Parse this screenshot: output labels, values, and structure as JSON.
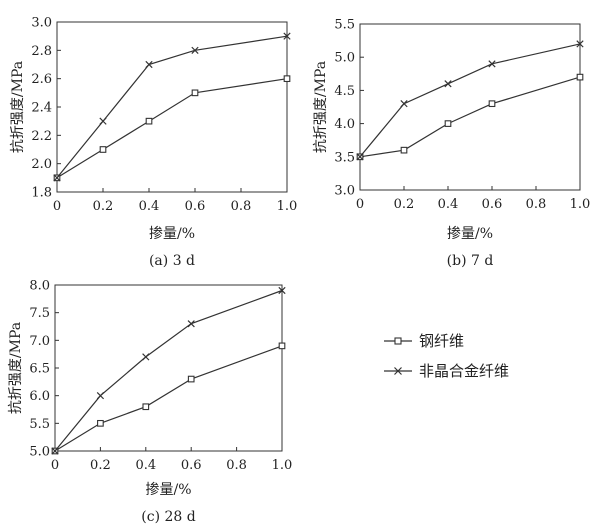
{
  "legend": [
    {
      "name": "钢纤维",
      "marker": "square-icon"
    },
    {
      "name": "非晶合金纤维",
      "marker": "cross-icon"
    }
  ],
  "chart_data": [
    {
      "type": "line",
      "caption": "(a) 3 d",
      "xlabel": "掺量/%",
      "ylabel": "抗折强度/MPa",
      "x": [
        0,
        0.2,
        0.4,
        0.6,
        1.0
      ],
      "xticks": [
        "0",
        "0.2",
        "0.4",
        "0.6",
        "0.8",
        "1.0"
      ],
      "xtick_values": [
        0,
        0.2,
        0.4,
        0.6,
        0.8,
        1.0
      ],
      "xlim": [
        0,
        1.0
      ],
      "ylim": [
        1.8,
        3.0
      ],
      "yticks": [
        "1.8",
        "2.0",
        "2.2",
        "2.4",
        "2.6",
        "2.8",
        "3.0"
      ],
      "ytick_values": [
        1.8,
        2.0,
        2.2,
        2.4,
        2.6,
        2.8,
        3.0
      ],
      "series": [
        {
          "name": "钢纤维",
          "values": [
            1.9,
            2.1,
            2.3,
            2.5,
            2.6
          ]
        },
        {
          "name": "非晶合金纤维",
          "values": [
            1.9,
            2.3,
            2.7,
            2.8,
            2.9
          ]
        }
      ]
    },
    {
      "type": "line",
      "caption": "(b) 7 d",
      "xlabel": "掺量/%",
      "ylabel": "抗折强度/MPa",
      "x": [
        0,
        0.2,
        0.4,
        0.6,
        1.0
      ],
      "xticks": [
        "0",
        "0.2",
        "0.4",
        "0.6",
        "0.8",
        "1.0"
      ],
      "xtick_values": [
        0,
        0.2,
        0.4,
        0.6,
        0.8,
        1.0
      ],
      "xlim": [
        0,
        1.0
      ],
      "ylim": [
        3.0,
        5.5
      ],
      "yticks": [
        "3.0",
        "3.5",
        "4.0",
        "4.5",
        "5.0",
        "5.5"
      ],
      "ytick_values": [
        3.0,
        3.5,
        4.0,
        4.5,
        5.0,
        5.5
      ],
      "series": [
        {
          "name": "钢纤维",
          "values": [
            3.5,
            3.6,
            4.0,
            4.3,
            4.7
          ]
        },
        {
          "name": "非晶合金纤维",
          "values": [
            3.5,
            4.3,
            4.6,
            4.9,
            5.2
          ]
        }
      ]
    },
    {
      "type": "line",
      "caption": "(c) 28 d",
      "xlabel": "掺量/%",
      "ylabel": "抗折强度/MPa",
      "x": [
        0,
        0.2,
        0.4,
        0.6,
        1.0
      ],
      "xticks": [
        "0",
        "0.2",
        "0.4",
        "0.6",
        "0.8",
        "1.0"
      ],
      "xtick_values": [
        0,
        0.2,
        0.4,
        0.6,
        0.8,
        1.0
      ],
      "xlim": [
        0,
        1.0
      ],
      "ylim": [
        5.0,
        8.0
      ],
      "yticks": [
        "5.0",
        "5.5",
        "6.0",
        "6.5",
        "7.0",
        "7.5",
        "8.0"
      ],
      "ytick_values": [
        5.0,
        5.5,
        6.0,
        6.5,
        7.0,
        7.5,
        8.0
      ],
      "series": [
        {
          "name": "钢纤维",
          "values": [
            5.0,
            5.5,
            5.8,
            6.3,
            6.9
          ]
        },
        {
          "name": "非晶合金纤维",
          "values": [
            5.0,
            6.0,
            6.7,
            7.3,
            7.9
          ]
        }
      ]
    }
  ]
}
